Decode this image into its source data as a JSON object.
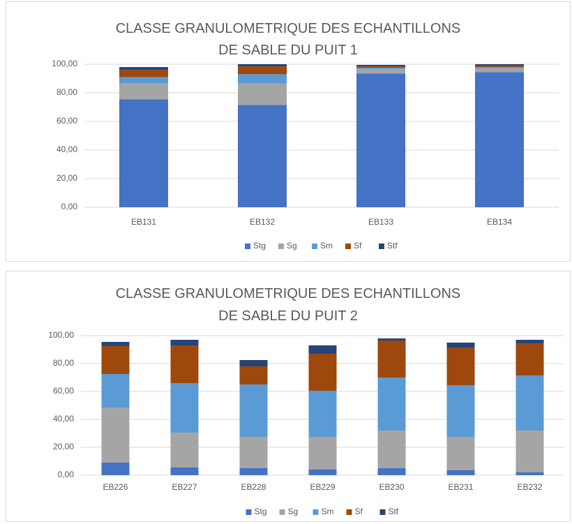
{
  "chart_data": [
    {
      "type": "stacked_bar",
      "title": "CLASSE GRANULOMETRIQUE DES ECHANTILLONS DE SABLE DU PUIT 1",
      "categories": [
        "EB131",
        "EB132",
        "EB133",
        "EB134"
      ],
      "series": [
        {
          "name": "Stg",
          "color": "#4472c4",
          "values": [
            75.5,
            71.5,
            93.5,
            94.5
          ]
        },
        {
          "name": "Sg",
          "color": "#a5a5a5",
          "values": [
            11,
            15,
            3,
            2.5
          ]
        },
        {
          "name": "Sm",
          "color": "#5b9bd5",
          "values": [
            4.5,
            6.5,
            1,
            1
          ]
        },
        {
          "name": "Sf",
          "color": "#9e480e",
          "values": [
            5,
            5.5,
            1,
            1
          ]
        },
        {
          "name": "Stf",
          "color": "#264478",
          "values": [
            2,
            1.5,
            1,
            1
          ]
        }
      ],
      "ylim": [
        0,
        100
      ],
      "yticks": [
        {
          "value": 0,
          "label": "0,00"
        },
        {
          "value": 20,
          "label": "20,00"
        },
        {
          "value": 40,
          "label": "40,00"
        },
        {
          "value": 60,
          "label": "60,00"
        },
        {
          "value": 80,
          "label": "80,00"
        },
        {
          "value": 100,
          "label": "100,00"
        }
      ],
      "grid": true,
      "legend": "bottom"
    },
    {
      "type": "stacked_bar",
      "title": "CLASSE GRANULOMETRIQUE DES ECHANTILLONS DE SABLE DU PUIT 2",
      "categories": [
        "EB226",
        "EB227",
        "EB228",
        "EB229",
        "EB230",
        "EB231",
        "EB232"
      ],
      "series": [
        {
          "name": "Stg",
          "color": "#4472c4",
          "values": [
            9,
            5.5,
            5,
            4,
            5,
            3.5,
            2
          ]
        },
        {
          "name": "Sg",
          "color": "#a5a5a5",
          "values": [
            39.5,
            25,
            22.5,
            23.5,
            27,
            24,
            30
          ]
        },
        {
          "name": "Sm",
          "color": "#5b9bd5",
          "values": [
            24,
            35.5,
            37.5,
            33,
            38,
            37,
            39.5
          ]
        },
        {
          "name": "Sf",
          "color": "#9e480e",
          "values": [
            20,
            27,
            13,
            26.5,
            26.5,
            27,
            23
          ]
        },
        {
          "name": "Stf",
          "color": "#264478",
          "values": [
            3,
            4,
            4.5,
            6,
            1.5,
            3.5,
            2.5
          ]
        }
      ],
      "ylim": [
        0,
        100
      ],
      "yticks": [
        {
          "value": 0,
          "label": "0,00"
        },
        {
          "value": 20,
          "label": "20,00"
        },
        {
          "value": 40,
          "label": "40,00"
        },
        {
          "value": 60,
          "label": "60,00"
        },
        {
          "value": 80,
          "label": "80,00"
        },
        {
          "value": 100,
          "label": "100,00"
        }
      ],
      "grid": true,
      "legend": "bottom"
    }
  ]
}
